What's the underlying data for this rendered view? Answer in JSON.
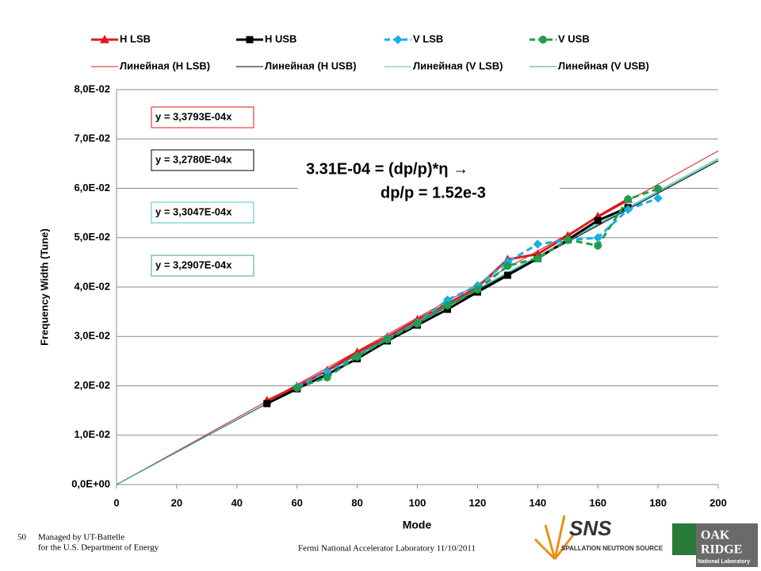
{
  "chart_data": {
    "type": "line",
    "x_label": "Mode",
    "y_label": "Frequency Width (Tune)",
    "x": [
      50,
      60,
      70,
      80,
      90,
      100,
      110,
      120,
      130,
      140,
      150,
      160,
      170,
      180
    ],
    "series": [
      {
        "name": "H LSB",
        "color": "#e0191e",
        "marker": "triangle",
        "dashed": false,
        "values": [
          0.017,
          0.0199,
          0.0231,
          0.0268,
          0.0299,
          0.0334,
          0.0366,
          0.04,
          0.0456,
          0.0467,
          0.0504,
          0.0543,
          0.0578,
          null
        ]
      },
      {
        "name": "H USB",
        "color": "#000000",
        "marker": "square",
        "dashed": false,
        "values": [
          0.0164,
          0.0194,
          0.0223,
          0.0255,
          0.0291,
          0.0323,
          0.0355,
          0.039,
          0.0424,
          0.0458,
          0.0496,
          0.0535,
          0.0561,
          null
        ]
      },
      {
        "name": "V LSB",
        "color": "#19aee8",
        "marker": "diamond",
        "dashed": true,
        "values": [
          null,
          0.0198,
          0.0228,
          0.0259,
          0.0296,
          0.0328,
          0.0374,
          0.0403,
          0.0451,
          0.0487,
          0.0495,
          0.05,
          0.0557,
          0.058
        ]
      },
      {
        "name": "V USB",
        "color": "#1f9e4d",
        "marker": "circle",
        "dashed": true,
        "values": [
          null,
          0.0196,
          0.0217,
          0.0259,
          0.0294,
          0.0326,
          0.0363,
          0.0395,
          0.0443,
          0.0458,
          0.0496,
          0.0484,
          0.0578,
          0.0599
        ]
      }
    ],
    "trendlines": [
      {
        "name": "Линейная (H LSB)",
        "color": "#e0191e",
        "slope": 0.00033793,
        "equation": "y = 3,3793E-04x"
      },
      {
        "name": "Линейная (H USB)",
        "color": "#000000",
        "slope": 0.0003278,
        "equation": "y = 3,2780E-04x"
      },
      {
        "name": "Линейная (V LSB)",
        "color": "#4bc6c9",
        "slope": 0.00033047,
        "equation": "y = 3,3047E-04x"
      },
      {
        "name": "Линейная (V USB)",
        "color": "#3aa88a",
        "slope": 0.00032907,
        "equation": "y = 3,2907E-04x"
      }
    ],
    "annotation": [
      "3.31E-04 = (dp/p)*η →",
      "dp/p = 1.52e-3"
    ],
    "xlim": [
      0,
      200
    ],
    "xticks": [
      0,
      20,
      40,
      60,
      80,
      100,
      120,
      140,
      160,
      180,
      200
    ],
    "ylim": [
      0,
      0.08
    ],
    "yticks": [
      {
        "value": 0,
        "label": "0,0E+00"
      },
      {
        "value": 0.01,
        "label": "1,0E-02"
      },
      {
        "value": 0.02,
        "label": "2,0E-02"
      },
      {
        "value": 0.03,
        "label": "3,0E-02"
      },
      {
        "value": 0.04,
        "label": "4,0E-02"
      },
      {
        "value": 0.05,
        "label": "5,0E-02"
      },
      {
        "value": 0.06,
        "label": "6,0E-02"
      },
      {
        "value": 0.07,
        "label": "7,0E-02"
      },
      {
        "value": 0.08,
        "label": "8,0E-02"
      }
    ],
    "grid": true
  },
  "footer": {
    "page": "50",
    "managed": [
      "Managed by UT-Battelle",
      "for the U.S. Department of Energy"
    ],
    "center": "Fermi National Accelerator Laboratory 11/10/2011",
    "sns": [
      "SNS",
      "SPALLATION NEUTRON SOURCE"
    ],
    "ornl": [
      "OAK",
      "RIDGE",
      "National Laboratory"
    ]
  }
}
